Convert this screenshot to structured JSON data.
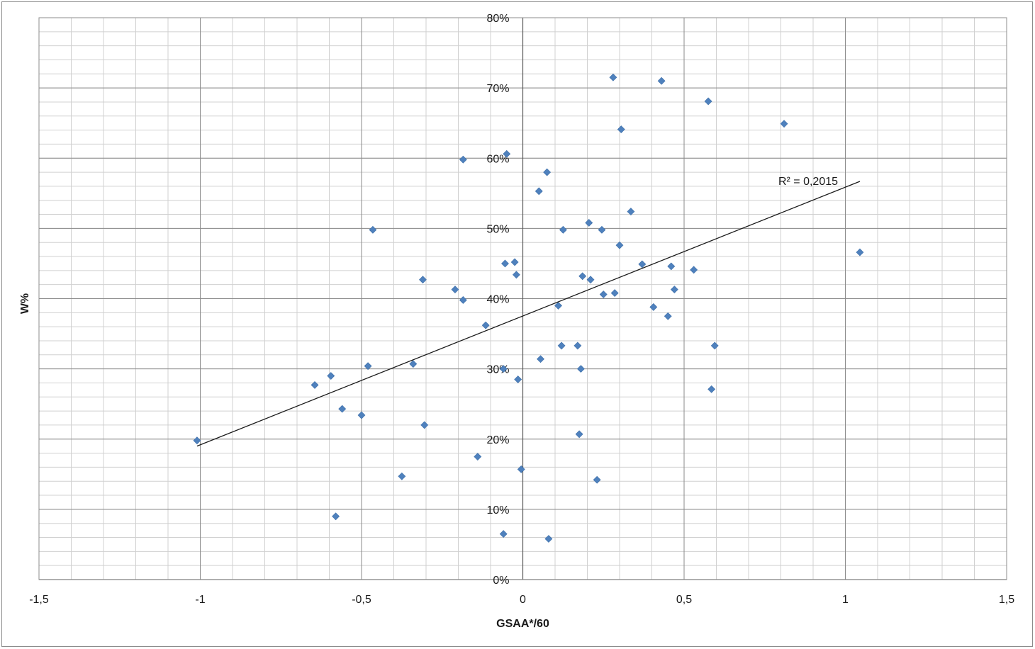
{
  "chart_data": {
    "type": "scatter",
    "title": "",
    "xlabel": "GSAA*/60",
    "ylabel": "W%",
    "xlim": [
      -1.5,
      1.5
    ],
    "ylim": [
      0,
      0.8
    ],
    "x_major_step": 0.5,
    "x_minor_step": 0.1,
    "y_major_step": 0.1,
    "y_minor_step": 0.02,
    "x_tick_labels": [
      "-1,5",
      "-1",
      "-0,5",
      "0",
      "0,5",
      "1",
      "1,5"
    ],
    "y_tick_labels": [
      "0%",
      "10%",
      "20%",
      "30%",
      "40%",
      "50%",
      "60%",
      "70%",
      "80%"
    ],
    "grid": true,
    "legend": "none",
    "marker_color": "#4f81bd",
    "trendline_color": "#1a1a1a",
    "series": [
      {
        "points": [
          {
            "x": -1.01,
            "y": 0.198
          },
          {
            "x": -0.645,
            "y": 0.277
          },
          {
            "x": -0.595,
            "y": 0.29
          },
          {
            "x": -0.58,
            "y": 0.09
          },
          {
            "x": -0.56,
            "y": 0.243
          },
          {
            "x": -0.5,
            "y": 0.234
          },
          {
            "x": -0.48,
            "y": 0.304
          },
          {
            "x": -0.465,
            "y": 0.498
          },
          {
            "x": -0.375,
            "y": 0.147
          },
          {
            "x": -0.34,
            "y": 0.307
          },
          {
            "x": -0.31,
            "y": 0.427
          },
          {
            "x": -0.305,
            "y": 0.22
          },
          {
            "x": -0.21,
            "y": 0.413
          },
          {
            "x": -0.185,
            "y": 0.598
          },
          {
            "x": -0.185,
            "y": 0.398
          },
          {
            "x": -0.14,
            "y": 0.175
          },
          {
            "x": -0.115,
            "y": 0.362
          },
          {
            "x": -0.06,
            "y": 0.065
          },
          {
            "x": -0.06,
            "y": 0.3
          },
          {
            "x": -0.055,
            "y": 0.45
          },
          {
            "x": -0.05,
            "y": 0.606
          },
          {
            "x": -0.025,
            "y": 0.452
          },
          {
            "x": -0.02,
            "y": 0.434
          },
          {
            "x": -0.015,
            "y": 0.285
          },
          {
            "x": -0.005,
            "y": 0.157
          },
          {
            "x": 0.05,
            "y": 0.553
          },
          {
            "x": 0.055,
            "y": 0.314
          },
          {
            "x": 0.075,
            "y": 0.58
          },
          {
            "x": 0.08,
            "y": 0.058
          },
          {
            "x": 0.11,
            "y": 0.39
          },
          {
            "x": 0.12,
            "y": 0.333
          },
          {
            "x": 0.125,
            "y": 0.498
          },
          {
            "x": 0.17,
            "y": 0.333
          },
          {
            "x": 0.175,
            "y": 0.207
          },
          {
            "x": 0.18,
            "y": 0.3
          },
          {
            "x": 0.185,
            "y": 0.432
          },
          {
            "x": 0.205,
            "y": 0.508
          },
          {
            "x": 0.21,
            "y": 0.427
          },
          {
            "x": 0.23,
            "y": 0.142
          },
          {
            "x": 0.245,
            "y": 0.498
          },
          {
            "x": 0.25,
            "y": 0.406
          },
          {
            "x": 0.28,
            "y": 0.715
          },
          {
            "x": 0.285,
            "y": 0.408
          },
          {
            "x": 0.3,
            "y": 0.476
          },
          {
            "x": 0.305,
            "y": 0.641
          },
          {
            "x": 0.335,
            "y": 0.524
          },
          {
            "x": 0.37,
            "y": 0.449
          },
          {
            "x": 0.405,
            "y": 0.388
          },
          {
            "x": 0.43,
            "y": 0.71
          },
          {
            "x": 0.45,
            "y": 0.375
          },
          {
            "x": 0.46,
            "y": 0.446
          },
          {
            "x": 0.47,
            "y": 0.413
          },
          {
            "x": 0.53,
            "y": 0.441
          },
          {
            "x": 0.575,
            "y": 0.681
          },
          {
            "x": 0.585,
            "y": 0.271
          },
          {
            "x": 0.595,
            "y": 0.333
          },
          {
            "x": 0.81,
            "y": 0.649
          },
          {
            "x": 1.045,
            "y": 0.466
          }
        ]
      }
    ],
    "trendline": {
      "type": "linear",
      "x_start": -1.01,
      "y_start": 0.19,
      "x_end": 1.045,
      "y_end": 0.567,
      "label": "R² = 0,2015"
    }
  }
}
